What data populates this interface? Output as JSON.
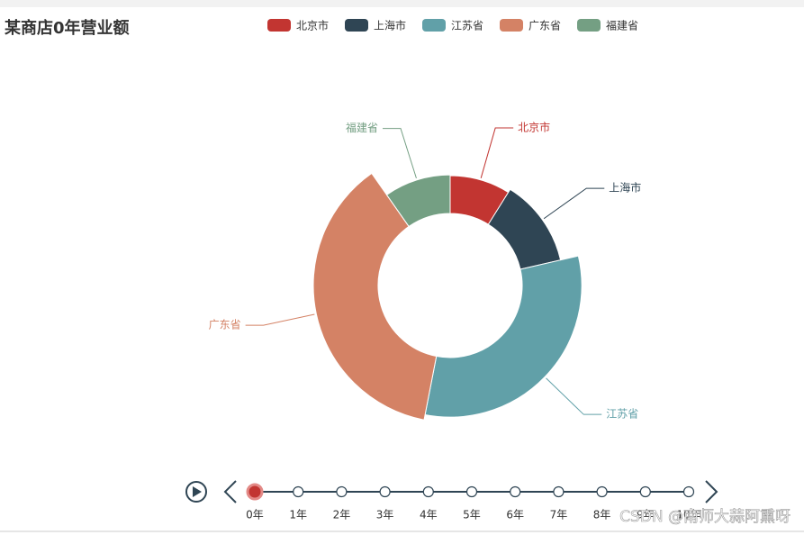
{
  "chart_data": {
    "type": "pie",
    "title": "某商店0年营业额",
    "categories": [
      "北京市",
      "上海市",
      "江苏省",
      "广东省",
      "福建省"
    ],
    "values": [
      32,
      45,
      114,
      134,
      35
    ],
    "colors": [
      "#c23531",
      "#2f4554",
      "#61a0a8",
      "#d48265",
      "#749f83"
    ],
    "timeline": {
      "labels": [
        "0年",
        "1年",
        "2年",
        "3年",
        "4年",
        "5年",
        "6年",
        "7年",
        "8年",
        "9年",
        "10年"
      ],
      "current": 0
    }
  },
  "watermark": "CSDN @南师大蒜阿熏呀"
}
